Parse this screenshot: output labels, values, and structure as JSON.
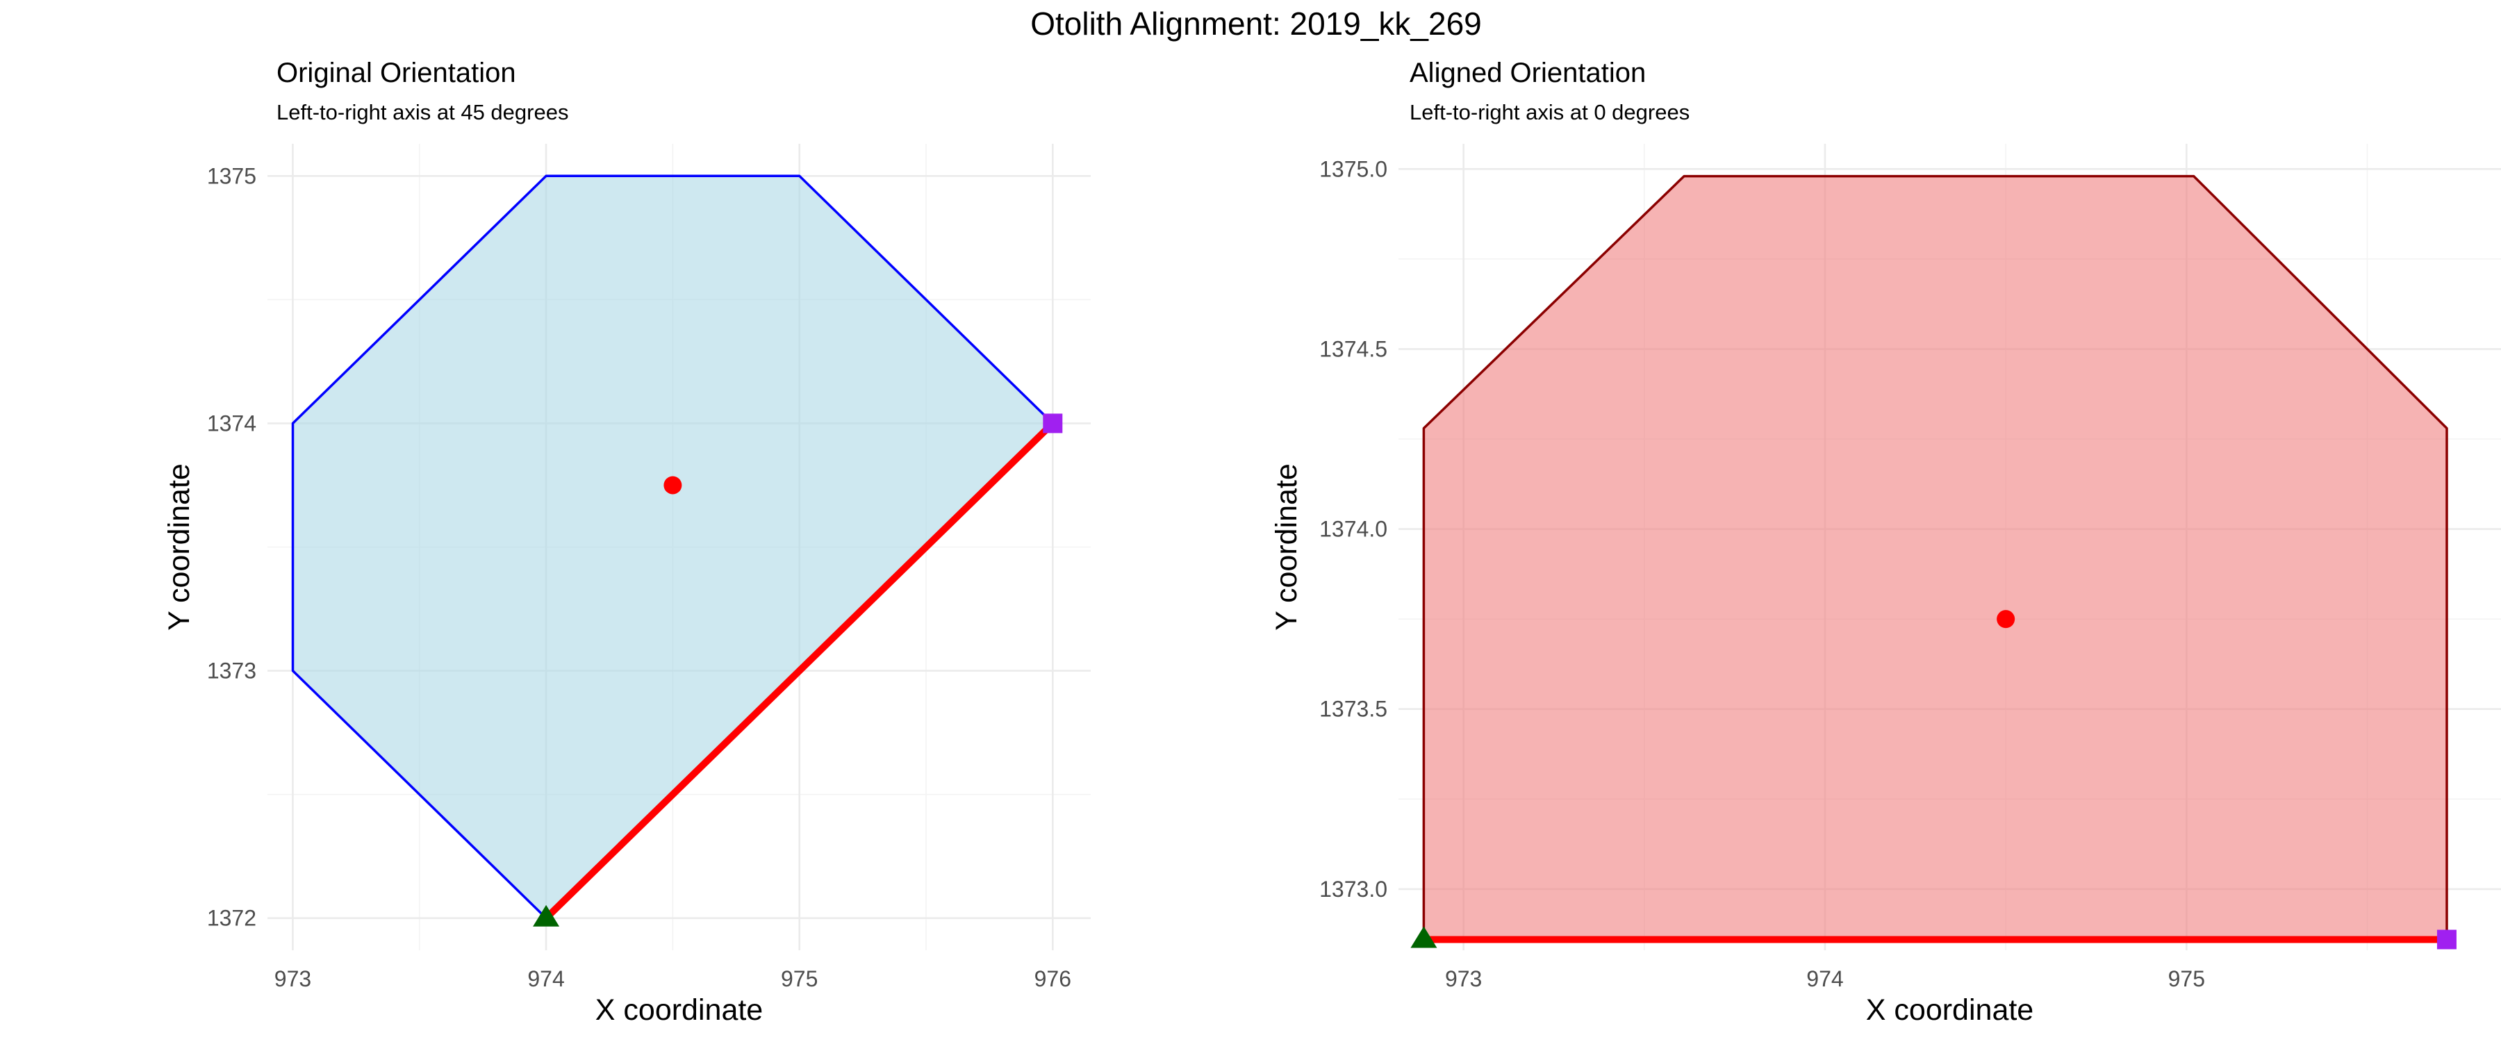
{
  "title": "Otolith Alignment: 2019_kk_269",
  "chart_data": [
    {
      "type": "scatter",
      "title": "Original Orientation",
      "subtitle": "Left-to-right axis at 45 degrees",
      "xlabel": "X coordinate",
      "ylabel": "Y coordinate",
      "xlim": [
        972.9,
        976.15
      ],
      "ylim": [
        1371.87,
        1375.13
      ],
      "xticks": [
        973,
        974,
        975,
        976
      ],
      "xtick_labels": [
        "973",
        "974",
        "975",
        "976"
      ],
      "yticks": [
        1372,
        1373,
        1374,
        1375
      ],
      "ytick_labels": [
        "1372",
        "1373",
        "1374",
        "1375"
      ],
      "xminor": [
        973.5,
        974.5,
        975.5
      ],
      "yminor": [
        1372.5,
        1373.5,
        1374.5
      ],
      "grid": true,
      "polygon": {
        "x": [
          974,
          976,
          975,
          974,
          973,
          973,
          974
        ],
        "y": [
          1372,
          1374,
          1375,
          1375,
          1374,
          1373,
          1372
        ],
        "fill": "#add8e6",
        "fill_opacity": 0.6,
        "stroke": "#0000ff"
      },
      "axis_line": {
        "x": [
          974,
          976
        ],
        "y": [
          1372,
          1374
        ],
        "color": "#ff0000"
      },
      "centroid": {
        "x": 974.5,
        "y": 1373.75,
        "color": "#ff0000"
      },
      "left_point": {
        "x": 974,
        "y": 1372,
        "color": "#006400",
        "shape": "triangle"
      },
      "right_point": {
        "x": 976,
        "y": 1374,
        "color": "#a020f0",
        "shape": "square"
      }
    },
    {
      "type": "scatter",
      "title": "Aligned Orientation",
      "subtitle": "Left-to-right axis at 0 degrees",
      "xlabel": "X coordinate",
      "ylabel": "Y coordinate",
      "xlim": [
        972.82,
        975.87
      ],
      "ylim": [
        1372.83,
        1375.07
      ],
      "xticks": [
        973,
        974,
        975
      ],
      "xtick_labels": [
        "973",
        "974",
        "975"
      ],
      "yticks": [
        1373.0,
        1373.5,
        1374.0,
        1374.5,
        1375.0
      ],
      "ytick_labels": [
        "1373.0",
        "1373.5",
        "1374.0",
        "1374.5",
        "1375.0"
      ],
      "xminor": [
        973.5,
        974.5,
        975.5
      ],
      "yminor": [
        1373.25,
        1373.75,
        1374.25,
        1374.75
      ],
      "grid": true,
      "polygon": {
        "x": [
          972.89,
          975.72,
          975.72,
          975.02,
          973.61,
          972.89,
          972.89
        ],
        "y": [
          1372.86,
          1372.86,
          1374.28,
          1374.98,
          1374.98,
          1374.28,
          1372.86
        ],
        "fill": "#f08080",
        "fill_opacity": 0.6,
        "stroke": "#8b0000"
      },
      "axis_line": {
        "x": [
          972.89,
          975.72
        ],
        "y": [
          1372.86,
          1372.86
        ],
        "color": "#ff0000"
      },
      "centroid": {
        "x": 974.5,
        "y": 1373.75,
        "color": "#ff0000"
      },
      "left_point": {
        "x": 972.89,
        "y": 1372.86,
        "color": "#006400",
        "shape": "triangle"
      },
      "right_point": {
        "x": 975.72,
        "y": 1372.86,
        "color": "#a020f0",
        "shape": "square"
      }
    }
  ]
}
